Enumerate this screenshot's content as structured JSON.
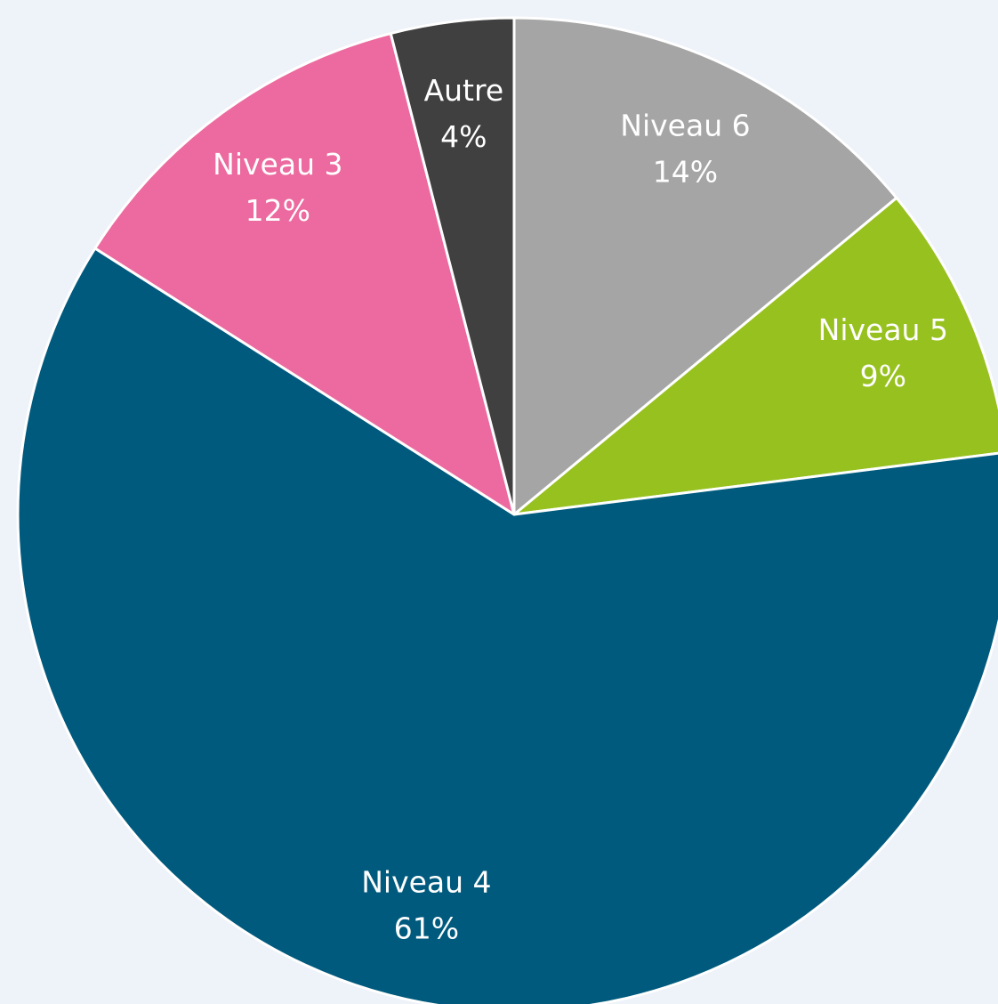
{
  "chart_data": {
    "type": "pie",
    "categories": [
      "Niveau 6",
      "Niveau 5",
      "Niveau 4",
      "Niveau 3",
      "Autre"
    ],
    "values": [
      14,
      9,
      61,
      12,
      4
    ],
    "value_labels": [
      "14%",
      "9%",
      "61%",
      "12%",
      "4%"
    ],
    "colors": [
      "#a5a5a5",
      "#97c11f",
      "#005a7d",
      "#ec6a9f",
      "#404040"
    ]
  }
}
